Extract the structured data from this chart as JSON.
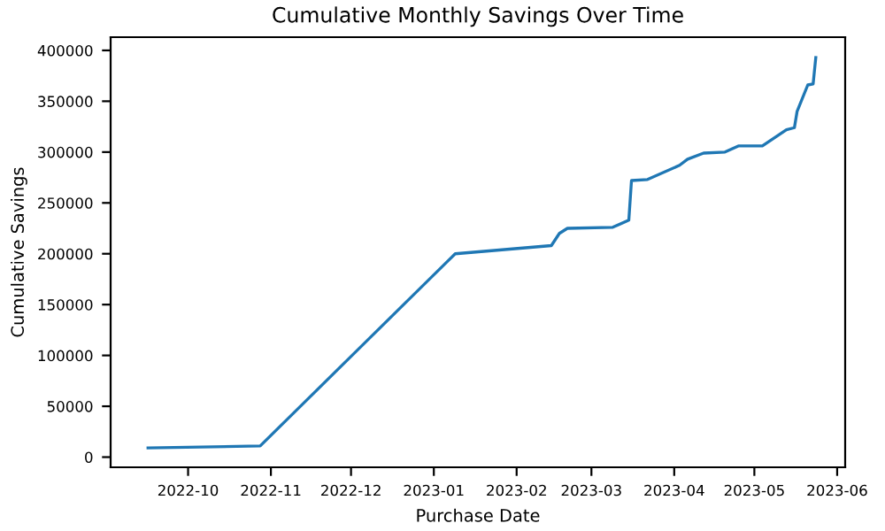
{
  "chart_data": {
    "type": "line",
    "title": "Cumulative Monthly Savings Over Time",
    "xlabel": "Purchase Date",
    "ylabel": "Cumulative Savings",
    "x": [
      "2022-09-16",
      "2022-10-28",
      "2023-01-09",
      "2023-02-14",
      "2023-02-17",
      "2023-02-20",
      "2023-03-09",
      "2023-03-15",
      "2023-03-16",
      "2023-03-22",
      "2023-04-03",
      "2023-04-06",
      "2023-04-12",
      "2023-04-20",
      "2023-04-25",
      "2023-05-04",
      "2023-05-13",
      "2023-05-16",
      "2023-05-17",
      "2023-05-21",
      "2023-05-23",
      "2023-05-24"
    ],
    "series": [
      {
        "color": "#1f77b4",
        "values": [
          9000,
          11000,
          200000,
          208000,
          220000,
          225000,
          226000,
          233000,
          272000,
          273000,
          287000,
          293000,
          299000,
          300000,
          306000,
          306000,
          322000,
          324000,
          340000,
          366000,
          367000,
          393000
        ]
      }
    ],
    "xlim": [
      "2022-09-02",
      "2023-06-04"
    ],
    "ylim": [
      -10000,
      413000
    ],
    "xticks": [
      {
        "value": "2022-10-01",
        "label": "2022-10"
      },
      {
        "value": "2022-11-01",
        "label": "2022-11"
      },
      {
        "value": "2022-12-01",
        "label": "2022-12"
      },
      {
        "value": "2023-01-01",
        "label": "2023-01"
      },
      {
        "value": "2023-02-01",
        "label": "2023-02"
      },
      {
        "value": "2023-03-01",
        "label": "2023-03"
      },
      {
        "value": "2023-04-01",
        "label": "2023-04"
      },
      {
        "value": "2023-05-01",
        "label": "2023-05"
      },
      {
        "value": "2023-06-01",
        "label": "2023-06"
      }
    ],
    "yticks": [
      0,
      50000,
      100000,
      150000,
      200000,
      250000,
      300000,
      350000,
      400000
    ],
    "grid": false,
    "legend": false
  }
}
